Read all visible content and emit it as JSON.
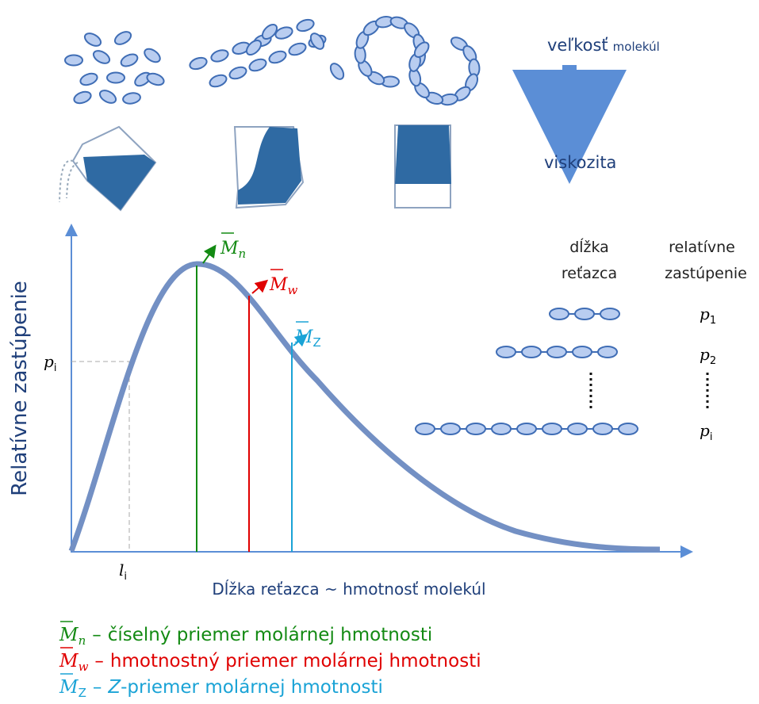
{
  "top": {
    "size_label": {
      "main": "veľkosť",
      "small": "molekúl"
    },
    "viscosity_label": "viskozita"
  },
  "plot": {
    "y_axis_label": "Relatívne zastúpenie",
    "x_axis_label": "Dĺžka reťazca ~ hmotnosť molekúl",
    "p_marker": {
      "symbol": "p",
      "sub": "i"
    },
    "l_marker": {
      "symbol": "l",
      "sub": "i"
    },
    "averages": [
      {
        "symbol": "M",
        "sub": "n"
      },
      {
        "symbol": "M",
        "sub": "w"
      },
      {
        "symbol": "M",
        "sub": "Z"
      }
    ]
  },
  "table": {
    "headers": [
      [
        "dĺžka",
        "reťazca"
      ],
      [
        "relatívne",
        "zastúpenie"
      ]
    ],
    "rows": [
      {
        "symbol": "p",
        "sub": "1"
      },
      {
        "symbol": "p",
        "sub": "2"
      },
      {
        "symbol": "p",
        "sub": "i"
      }
    ]
  },
  "legend": [
    {
      "symbol": "M",
      "sub": "n",
      "dash": "–",
      "text": "číselný priemer molárnej hmotnosti"
    },
    {
      "symbol": "M",
      "sub": "w",
      "dash": "–",
      "text": "hmotnostný priemer molárnej hmotnosti"
    },
    {
      "symbol": "M",
      "sub": "Z",
      "dash": "–",
      "italic": "Z",
      "text": "-priemer molárnej hmotnosti"
    }
  ]
}
